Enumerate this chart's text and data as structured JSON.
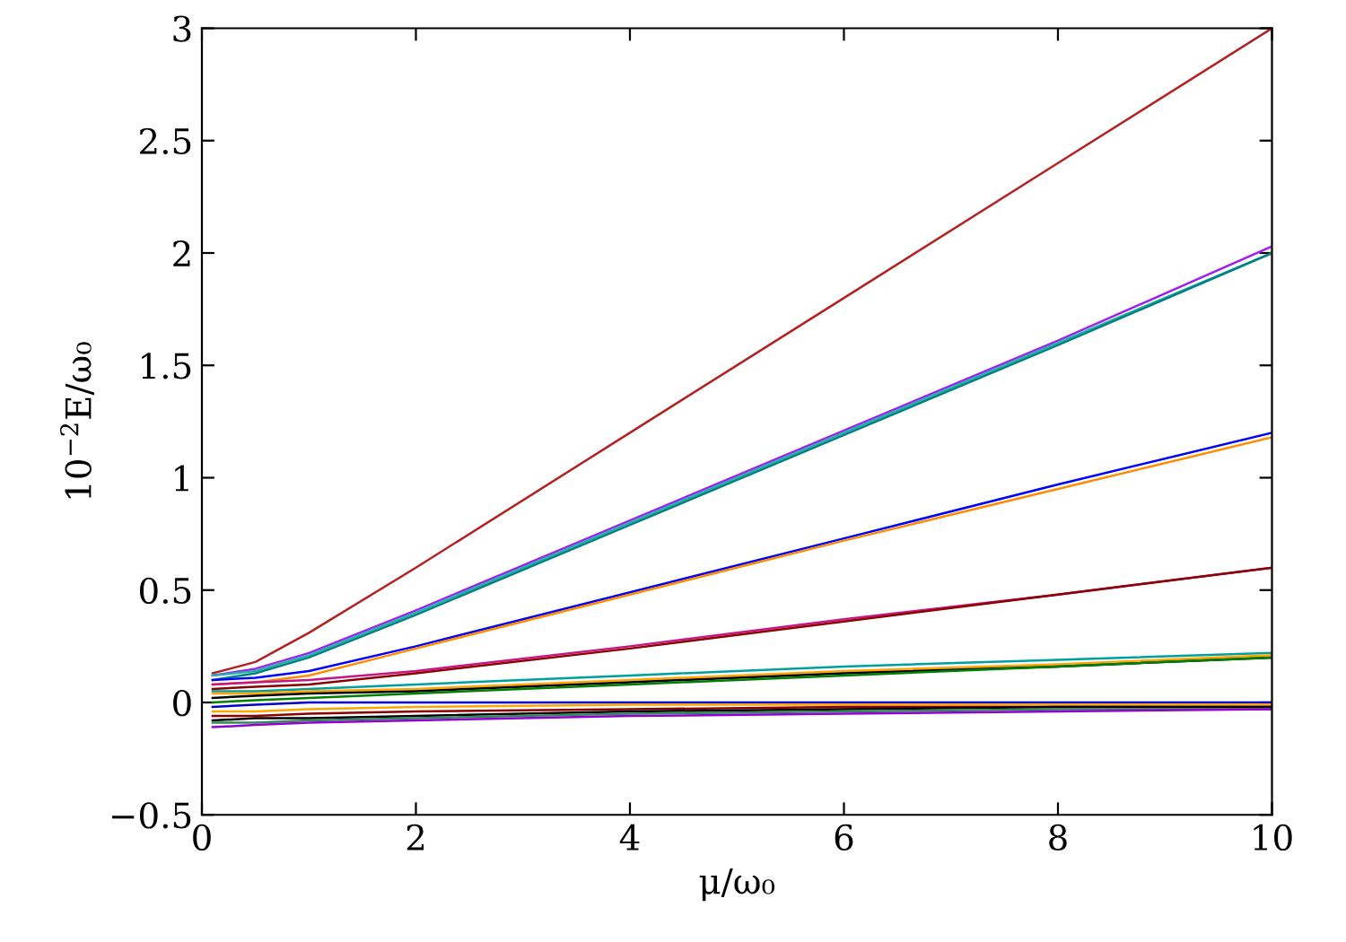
{
  "chart_data": {
    "type": "line",
    "xlabel": "μ/ω₀",
    "ylabel": "10$^{−2}$E/ω₀",
    "x": [
      0.1,
      0.5,
      1,
      2,
      4,
      6,
      8,
      10
    ],
    "xlim": [
      0,
      10
    ],
    "xticks": [
      0,
      2,
      4,
      6,
      8,
      10
    ],
    "ylim": [
      -0.5,
      3
    ],
    "yticks": [
      {
        "value": -0.5,
        "label": "−0.5"
      },
      0,
      0.5,
      1,
      1.5,
      2,
      2.5,
      3
    ],
    "grid": false,
    "marker": "none",
    "line_style": "solid",
    "series": [
      {
        "color": "#b22222",
        "values": [
          0.13,
          0.18,
          0.31,
          0.6,
          1.2,
          1.8,
          2.4,
          3.0
        ]
      },
      {
        "color": "#a020f0",
        "values": [
          0.12,
          0.15,
          0.22,
          0.41,
          0.81,
          1.21,
          1.61,
          2.03
        ]
      },
      {
        "color": "#20b2aa",
        "values": [
          0.12,
          0.14,
          0.21,
          0.4,
          0.8,
          1.2,
          1.6,
          2.0
        ]
      },
      {
        "color": "#008080",
        "values": [
          0.1,
          0.13,
          0.2,
          0.39,
          0.79,
          1.19,
          1.59,
          2.0
        ]
      },
      {
        "color": "#0000ff",
        "values": [
          0.1,
          0.11,
          0.14,
          0.25,
          0.49,
          0.73,
          0.97,
          1.2
        ]
      },
      {
        "color": "#ff8c00",
        "values": [
          0.08,
          0.09,
          0.12,
          0.24,
          0.48,
          0.72,
          0.95,
          1.18
        ]
      },
      {
        "color": "#c71585",
        "values": [
          0.08,
          0.09,
          0.1,
          0.14,
          0.25,
          0.37,
          0.48,
          0.6
        ]
      },
      {
        "color": "#8b0000",
        "values": [
          0.06,
          0.07,
          0.08,
          0.13,
          0.24,
          0.36,
          0.48,
          0.6
        ]
      },
      {
        "color": "#00a0a0",
        "values": [
          0.05,
          0.05,
          0.06,
          0.08,
          0.12,
          0.16,
          0.19,
          0.22
        ]
      },
      {
        "color": "#ffa500",
        "values": [
          0.04,
          0.04,
          0.05,
          0.06,
          0.1,
          0.14,
          0.17,
          0.21
        ]
      },
      {
        "color": "#000000",
        "values": [
          0.02,
          0.03,
          0.04,
          0.05,
          0.09,
          0.13,
          0.16,
          0.2
        ]
      },
      {
        "color": "#008000",
        "values": [
          0.0,
          0.01,
          0.02,
          0.04,
          0.08,
          0.12,
          0.16,
          0.2
        ]
      },
      {
        "color": "#0000cd",
        "values": [
          -0.02,
          -0.01,
          0.0,
          0.0,
          0.0,
          0.0,
          0.0,
          0.0
        ]
      },
      {
        "color": "#ffa500",
        "values": [
          -0.04,
          -0.04,
          -0.03,
          -0.02,
          -0.01,
          -0.01,
          -0.01,
          -0.01
        ]
      },
      {
        "color": "#8b0000",
        "values": [
          -0.06,
          -0.06,
          -0.05,
          -0.04,
          -0.03,
          -0.02,
          -0.02,
          -0.02
        ]
      },
      {
        "color": "#000000",
        "values": [
          -0.08,
          -0.07,
          -0.07,
          -0.06,
          -0.04,
          -0.03,
          -0.02,
          -0.02
        ]
      },
      {
        "color": "#2e8b57",
        "values": [
          -0.09,
          -0.09,
          -0.08,
          -0.07,
          -0.05,
          -0.04,
          -0.03,
          -0.03
        ]
      },
      {
        "color": "#9400d3",
        "values": [
          -0.11,
          -0.1,
          -0.09,
          -0.08,
          -0.06,
          -0.05,
          -0.04,
          -0.03
        ]
      }
    ]
  }
}
